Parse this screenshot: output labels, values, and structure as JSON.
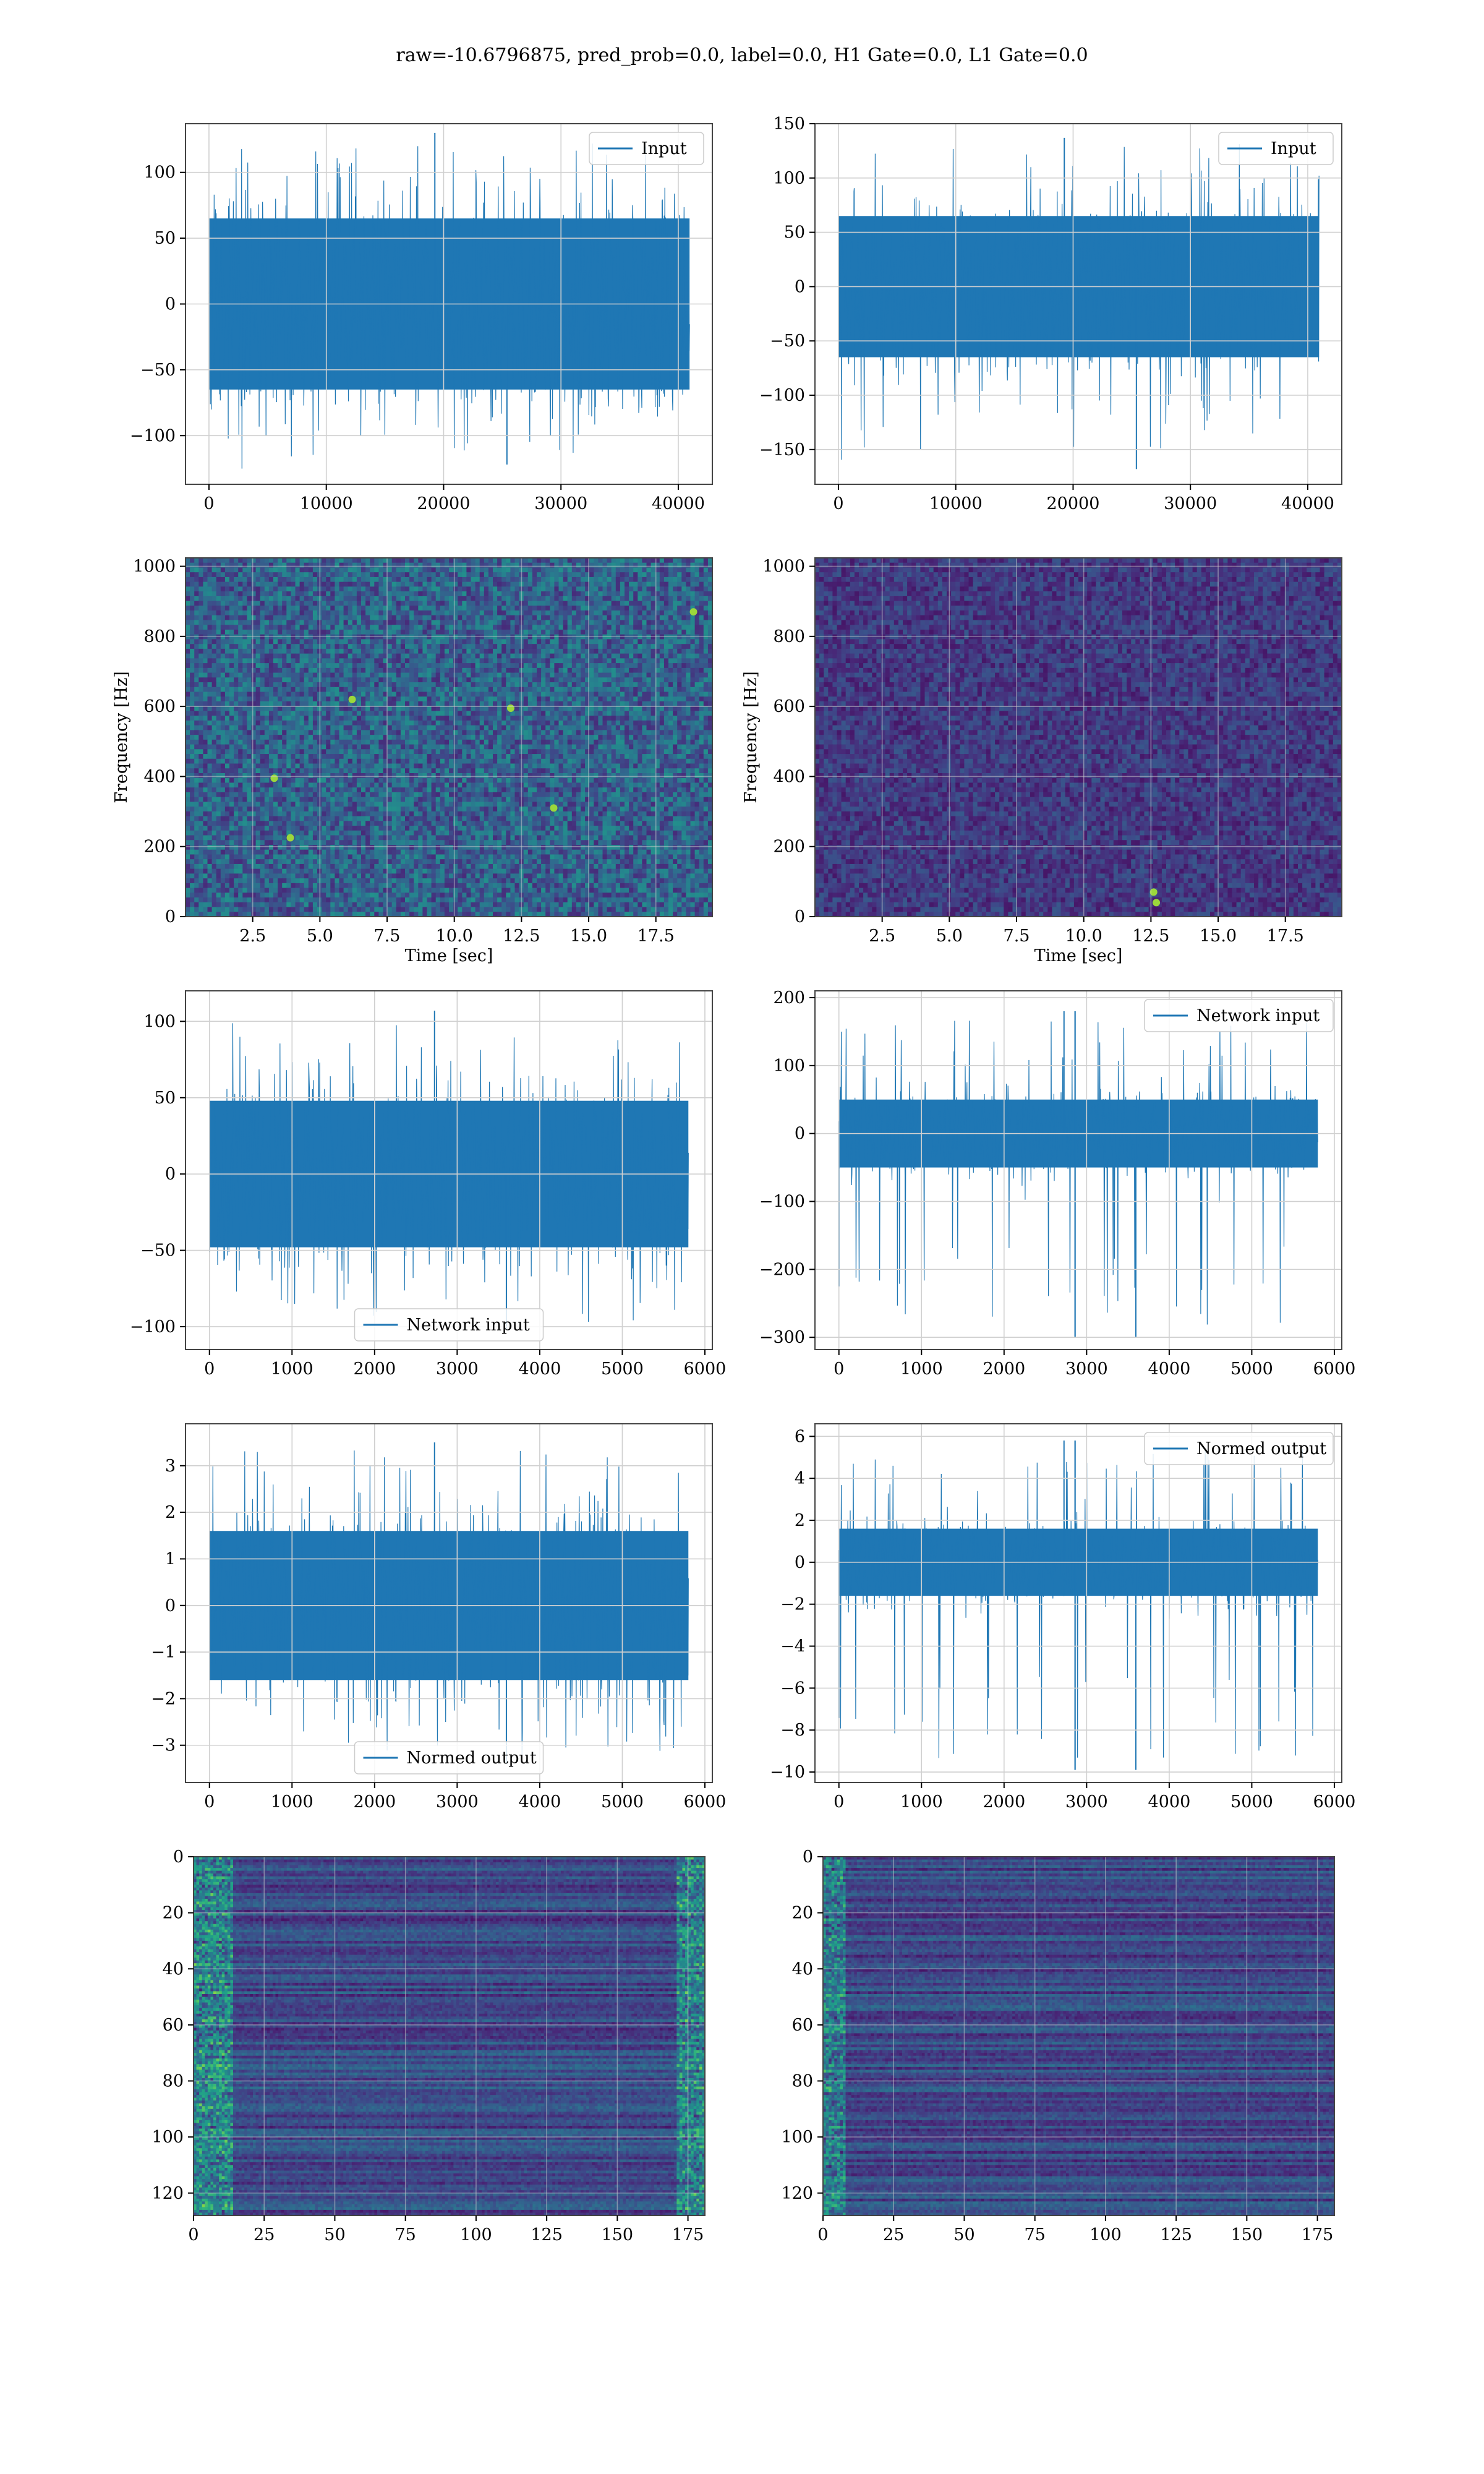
{
  "title": "raw=-10.6796875, pred_prob=0.0, label=0.0, H1 Gate=0.0, L1 Gate=0.0",
  "colors": {
    "series": "#1f77b4",
    "grid": "#d0d0d0",
    "axes": "#444444",
    "viridis": [
      "#440154",
      "#482878",
      "#3e4989",
      "#31688e",
      "#26828e",
      "#1f9e89",
      "#35b779",
      "#6ece58",
      "#b5de2b",
      "#fde725"
    ]
  },
  "chart_data": [
    {
      "id": "h1-input",
      "type": "line",
      "legend": "Input",
      "legend_loc": "upper right",
      "xlim": [
        -2000,
        42900
      ],
      "ylim": [
        -137,
        137
      ],
      "xticks": [
        0,
        10000,
        20000,
        30000,
        40000
      ],
      "yticks": [
        -100,
        -50,
        0,
        50,
        100
      ],
      "series": [
        {
          "name": "Input",
          "n": 40960,
          "band": 65,
          "peak_max": 130,
          "peak_min": -122
        }
      ]
    },
    {
      "id": "l1-input",
      "type": "line",
      "legend": "Input",
      "legend_loc": "upper right",
      "xlim": [
        -2000,
        42900
      ],
      "ylim": [
        -182,
        150
      ],
      "xticks": [
        0,
        10000,
        20000,
        30000,
        40000
      ],
      "yticks": [
        -150,
        -100,
        -50,
        0,
        50,
        100,
        150
      ],
      "series": [
        {
          "name": "Input",
          "n": 40960,
          "band": 65,
          "peak_max": 137,
          "peak_min": -168
        }
      ]
    },
    {
      "id": "h1-spectrogram",
      "type": "heatmap",
      "xlabel": "Time [sec]",
      "ylabel": "Frequency [Hz]",
      "xlim": [
        0,
        19.6
      ],
      "ylim": [
        0,
        1024
      ],
      "xticks": [
        2.5,
        5.0,
        7.5,
        10.0,
        12.5,
        15.0,
        17.5
      ],
      "yticks": [
        0,
        200,
        400,
        600,
        800,
        1000
      ],
      "hotspots": [
        [
          6.2,
          620
        ],
        [
          12.1,
          595
        ],
        [
          3.3,
          395
        ],
        [
          13.7,
          310
        ],
        [
          18.9,
          870
        ],
        [
          3.9,
          225
        ]
      ]
    },
    {
      "id": "l1-spectrogram",
      "type": "heatmap",
      "xlabel": "Time [sec]",
      "ylabel": "Frequency [Hz]",
      "xlim": [
        0,
        19.6
      ],
      "ylim": [
        0,
        1024
      ],
      "xticks": [
        2.5,
        5.0,
        7.5,
        10.0,
        12.5,
        15.0,
        17.5
      ],
      "yticks": [
        0,
        200,
        400,
        600,
        800,
        1000
      ],
      "hotspots": [
        [
          12.7,
          40
        ],
        [
          12.6,
          70
        ]
      ]
    },
    {
      "id": "h1-network-input",
      "type": "line",
      "legend": "Network input",
      "legend_loc": "lower center",
      "xlim": [
        -290,
        6090
      ],
      "ylim": [
        -115,
        120
      ],
      "xticks": [
        0,
        1000,
        2000,
        3000,
        4000,
        5000,
        6000
      ],
      "yticks": [
        -100,
        -50,
        0,
        50,
        100
      ],
      "series": [
        {
          "name": "Network input",
          "n": 5800,
          "band": 48,
          "peak_max": 107,
          "peak_min": -102
        }
      ]
    },
    {
      "id": "l1-network-input",
      "type": "line",
      "legend": "Network input",
      "legend_loc": "upper right",
      "xlim": [
        -290,
        6090
      ],
      "ylim": [
        -318,
        210
      ],
      "xticks": [
        0,
        1000,
        2000,
        3000,
        4000,
        5000,
        6000
      ],
      "yticks": [
        -300,
        -200,
        -100,
        0,
        100,
        200
      ],
      "series": [
        {
          "name": "Network input",
          "n": 5800,
          "band": 50,
          "peak_max": 180,
          "peak_min": -300,
          "spike_x": [
            0,
            2860
          ]
        }
      ]
    },
    {
      "id": "h1-normed-output",
      "type": "line",
      "legend": "Normed output",
      "legend_loc": "lower center",
      "xlim": [
        -290,
        6090
      ],
      "ylim": [
        -3.8,
        3.9
      ],
      "xticks": [
        0,
        1000,
        2000,
        3000,
        4000,
        5000,
        6000
      ],
      "yticks": [
        -3,
        -2,
        -1,
        0,
        1,
        2,
        3
      ],
      "series": [
        {
          "name": "Normed output",
          "n": 5800,
          "band": 1.6,
          "peak_max": 3.5,
          "peak_min": -3.4
        }
      ]
    },
    {
      "id": "l1-normed-output",
      "type": "line",
      "legend": "Normed output",
      "legend_loc": "upper right",
      "xlim": [
        -290,
        6090
      ],
      "ylim": [
        -10.5,
        6.6
      ],
      "xticks": [
        0,
        1000,
        2000,
        3000,
        4000,
        5000,
        6000
      ],
      "yticks": [
        -10,
        -8,
        -6,
        -4,
        -2,
        0,
        2,
        4,
        6
      ],
      "series": [
        {
          "name": "Normed output",
          "n": 5800,
          "band": 1.6,
          "peak_max": 5.8,
          "peak_min": -9.9,
          "spike_x": [
            0,
            2860
          ]
        }
      ]
    },
    {
      "id": "h1-feature-map",
      "type": "heatmap",
      "xlim": [
        0,
        181
      ],
      "ylim": [
        128,
        0
      ],
      "xticks": [
        0,
        25,
        50,
        75,
        100,
        125,
        150,
        175
      ],
      "yticks": [
        0,
        20,
        40,
        60,
        80,
        100,
        120
      ]
    },
    {
      "id": "l1-feature-map",
      "type": "heatmap",
      "xlim": [
        0,
        181
      ],
      "ylim": [
        128,
        0
      ],
      "xticks": [
        0,
        25,
        50,
        75,
        100,
        125,
        150,
        175
      ],
      "yticks": [
        0,
        20,
        40,
        60,
        80,
        100,
        120
      ]
    }
  ]
}
